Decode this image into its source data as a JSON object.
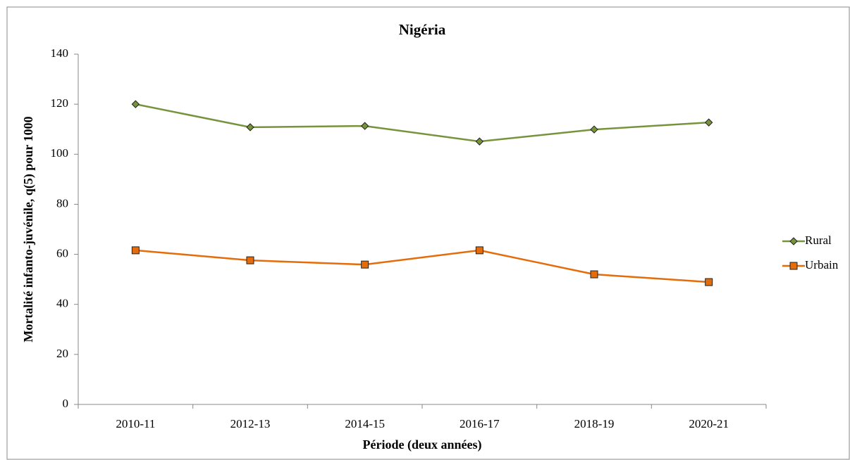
{
  "chart_data": {
    "type": "line",
    "title": "Nigéria",
    "x_label": "Période (deux années)",
    "y_label": "Mortalité infanto-juvénile, q(5) pour 1000",
    "categories": [
      "2010-11",
      "2012-13",
      "2014-15",
      "2016-17",
      "2018-19",
      "2020-21"
    ],
    "series": [
      {
        "name": "Rural",
        "color": "#77933c",
        "marker": "diamond",
        "values": [
          120.0,
          110.8,
          111.3,
          105.1,
          109.9,
          112.7
        ]
      },
      {
        "name": "Urbain",
        "color": "#e46c0a",
        "marker": "square",
        "values": [
          61.6,
          57.6,
          55.9,
          61.6,
          52.0,
          48.9
        ]
      }
    ],
    "ylim": [
      0,
      140
    ],
    "yticks": [
      0,
      20,
      40,
      60,
      80,
      100,
      120,
      140
    ],
    "grid": false,
    "legend": "right"
  }
}
